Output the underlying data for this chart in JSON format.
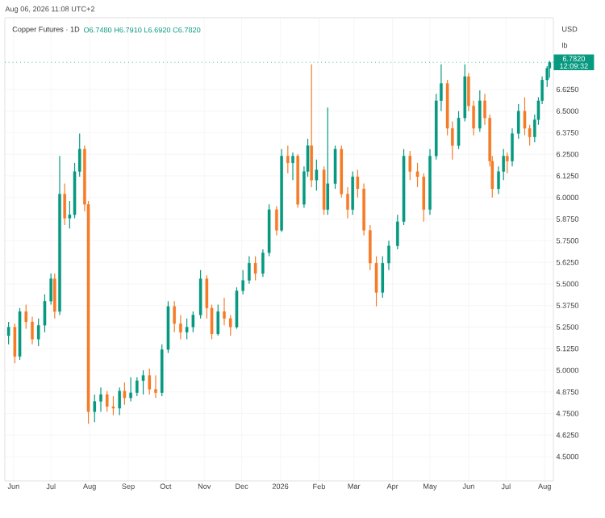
{
  "chart_data": {
    "type": "candlestick",
    "title": "Copper Futures · 1D",
    "subtitle": "O6.7480 H6.7910 L6.6920 C6.7820",
    "annotations": [
      "Aug 06, 2026 11:08 UTC+2",
      "USD",
      "lb",
      "12:09:32"
    ],
    "ref_lines": [
      {
        "axis": "y",
        "value": 6.782,
        "label": "6.7820",
        "color": "#089981",
        "line_style": "dotted"
      }
    ],
    "x": [
      "2025-05-28",
      "2025-06-02",
      "2025-06-06",
      "2025-06-11",
      "2025-06-16",
      "2025-06-21",
      "2025-06-26",
      "2025-07-01",
      "2025-07-04",
      "2025-07-08",
      "2025-07-12",
      "2025-07-16",
      "2025-07-20",
      "2025-07-24",
      "2025-07-28",
      "2025-07-31",
      "2025-08-05",
      "2025-08-10",
      "2025-08-15",
      "2025-08-20",
      "2025-08-25",
      "2025-08-29",
      "2025-09-03",
      "2025-09-08",
      "2025-09-13",
      "2025-09-18",
      "2025-09-23",
      "2025-09-28",
      "2025-10-03",
      "2025-10-08",
      "2025-10-13",
      "2025-10-18",
      "2025-10-23",
      "2025-10-29",
      "2025-11-03",
      "2025-11-07",
      "2025-11-12",
      "2025-11-17",
      "2025-11-22",
      "2025-11-27",
      "2025-12-02",
      "2025-12-07",
      "2025-12-12",
      "2025-12-18",
      "2025-12-23",
      "2025-12-29",
      "2026-01-02",
      "2026-01-07",
      "2026-01-11",
      "2026-01-15",
      "2026-01-20",
      "2026-01-23",
      "2026-01-26",
      "2026-01-30",
      "2026-02-05",
      "2026-02-08",
      "2026-02-14",
      "2026-02-19",
      "2026-02-24",
      "2026-02-28",
      "2026-03-04",
      "2026-03-09",
      "2026-03-14",
      "2026-03-19",
      "2026-03-24",
      "2026-03-29",
      "2026-04-05",
      "2026-04-10",
      "2026-04-15",
      "2026-04-21",
      "2026-04-26",
      "2026-05-01",
      "2026-05-06",
      "2026-05-10",
      "2026-05-15",
      "2026-05-19",
      "2026-05-24",
      "2026-05-29",
      "2026-06-01",
      "2026-06-05",
      "2026-06-10",
      "2026-06-14",
      "2026-06-18",
      "2026-06-20",
      "2026-06-25",
      "2026-06-29",
      "2026-07-02",
      "2026-07-06",
      "2026-07-11",
      "2026-07-16",
      "2026-07-20",
      "2026-07-24",
      "2026-07-27",
      "2026-07-30",
      "2026-08-03",
      "2026-08-05"
    ],
    "ohlc": [
      [
        5.2,
        5.28,
        5.15,
        5.25
      ],
      [
        5.25,
        5.27,
        5.04,
        5.08
      ],
      [
        5.08,
        5.36,
        5.06,
        5.34
      ],
      [
        5.34,
        5.38,
        5.24,
        5.28
      ],
      [
        5.28,
        5.31,
        5.15,
        5.18
      ],
      [
        5.18,
        5.3,
        5.14,
        5.26
      ],
      [
        5.26,
        5.44,
        5.22,
        5.4
      ],
      [
        5.4,
        5.56,
        5.38,
        5.53
      ],
      [
        5.53,
        5.56,
        5.3,
        5.34
      ],
      [
        5.34,
        6.24,
        5.32,
        6.02
      ],
      [
        6.02,
        6.08,
        5.84,
        5.88
      ],
      [
        5.88,
        5.98,
        5.82,
        5.9
      ],
      [
        5.9,
        6.2,
        5.88,
        6.15
      ],
      [
        6.15,
        6.37,
        6.12,
        6.28
      ],
      [
        6.28,
        6.3,
        5.92,
        5.96
      ],
      [
        5.96,
        5.98,
        4.69,
        4.76
      ],
      [
        4.76,
        4.86,
        4.7,
        4.82
      ],
      [
        4.82,
        4.9,
        4.76,
        4.86
      ],
      [
        4.86,
        4.88,
        4.76,
        4.79
      ],
      [
        4.79,
        4.85,
        4.74,
        4.78
      ],
      [
        4.78,
        4.9,
        4.74,
        4.88
      ],
      [
        4.88,
        4.93,
        4.8,
        4.84
      ],
      [
        4.84,
        4.96,
        4.82,
        4.87
      ],
      [
        4.87,
        4.96,
        4.85,
        4.94
      ],
      [
        4.94,
        5.0,
        4.86,
        4.97
      ],
      [
        4.97,
        5.01,
        4.86,
        4.89
      ],
      [
        4.89,
        4.97,
        4.84,
        4.87
      ],
      [
        4.87,
        5.15,
        4.85,
        5.12
      ],
      [
        5.12,
        5.4,
        5.1,
        5.37
      ],
      [
        5.37,
        5.4,
        5.22,
        5.27
      ],
      [
        5.27,
        5.32,
        5.18,
        5.22
      ],
      [
        5.22,
        5.3,
        5.18,
        5.25
      ],
      [
        5.25,
        5.34,
        5.22,
        5.32
      ],
      [
        5.32,
        5.58,
        5.3,
        5.53
      ],
      [
        5.53,
        5.55,
        5.3,
        5.36
      ],
      [
        5.36,
        5.38,
        5.18,
        5.21
      ],
      [
        5.21,
        5.38,
        5.2,
        5.34
      ],
      [
        5.34,
        5.42,
        5.26,
        5.3
      ],
      [
        5.3,
        5.32,
        5.2,
        5.25
      ],
      [
        5.25,
        5.48,
        5.24,
        5.46
      ],
      [
        5.46,
        5.58,
        5.44,
        5.52
      ],
      [
        5.52,
        5.66,
        5.5,
        5.62
      ],
      [
        5.62,
        5.66,
        5.52,
        5.56
      ],
      [
        5.56,
        5.7,
        5.54,
        5.68
      ],
      [
        5.68,
        5.96,
        5.66,
        5.93
      ],
      [
        5.93,
        5.95,
        5.78,
        5.81
      ],
      [
        5.81,
        6.28,
        5.8,
        6.24
      ],
      [
        6.24,
        6.3,
        6.14,
        6.2
      ],
      [
        6.2,
        6.26,
        6.1,
        6.24
      ],
      [
        6.24,
        6.25,
        5.94,
        5.96
      ],
      [
        5.96,
        6.18,
        5.94,
        6.15
      ],
      [
        6.15,
        6.34,
        6.12,
        6.3
      ],
      [
        6.3,
        6.77,
        6.06,
        6.1
      ],
      [
        6.1,
        6.22,
        6.04,
        6.16
      ],
      [
        6.16,
        6.18,
        5.9,
        5.93
      ],
      [
        5.93,
        6.52,
        5.9,
        6.08
      ],
      [
        6.08,
        6.3,
        6.05,
        6.28
      ],
      [
        6.28,
        6.3,
        6.0,
        6.02
      ],
      [
        6.02,
        6.06,
        5.88,
        5.93
      ],
      [
        5.93,
        6.15,
        5.9,
        6.12
      ],
      [
        6.12,
        6.16,
        6.0,
        6.05
      ],
      [
        6.05,
        6.08,
        5.78,
        5.81
      ],
      [
        5.81,
        5.84,
        5.58,
        5.62
      ],
      [
        5.62,
        5.66,
        5.37,
        5.45
      ],
      [
        5.45,
        5.66,
        5.42,
        5.62
      ],
      [
        5.62,
        5.75,
        5.58,
        5.72
      ],
      [
        5.72,
        5.9,
        5.7,
        5.86
      ],
      [
        5.86,
        6.28,
        5.84,
        6.24
      ],
      [
        6.24,
        6.27,
        6.1,
        6.15
      ],
      [
        6.15,
        6.2,
        6.06,
        6.12
      ],
      [
        6.12,
        6.14,
        5.86,
        5.93
      ],
      [
        5.93,
        6.28,
        5.9,
        6.24
      ],
      [
        6.24,
        6.6,
        6.22,
        6.56
      ],
      [
        6.56,
        6.77,
        6.5,
        6.66
      ],
      [
        6.66,
        6.68,
        6.36,
        6.4
      ],
      [
        6.4,
        6.44,
        6.22,
        6.3
      ],
      [
        6.3,
        6.5,
        6.28,
        6.46
      ],
      [
        6.46,
        6.77,
        6.44,
        6.7
      ],
      [
        6.7,
        6.72,
        6.5,
        6.53
      ],
      [
        6.53,
        6.56,
        6.36,
        6.4
      ],
      [
        6.4,
        6.62,
        6.38,
        6.56
      ],
      [
        6.56,
        6.6,
        6.42,
        6.46
      ],
      [
        6.46,
        6.48,
        6.18,
        6.21
      ],
      [
        6.21,
        6.24,
        6.0,
        6.05
      ],
      [
        6.05,
        6.18,
        6.02,
        6.15
      ],
      [
        6.15,
        6.28,
        6.1,
        6.24
      ],
      [
        6.24,
        6.26,
        6.14,
        6.21
      ],
      [
        6.21,
        6.4,
        6.18,
        6.37
      ],
      [
        6.37,
        6.54,
        6.34,
        6.5
      ],
      [
        6.5,
        6.58,
        6.36,
        6.4
      ],
      [
        6.4,
        6.42,
        6.3,
        6.35
      ],
      [
        6.35,
        6.48,
        6.32,
        6.45
      ],
      [
        6.45,
        6.58,
        6.42,
        6.56
      ],
      [
        6.56,
        6.7,
        6.54,
        6.68
      ],
      [
        6.68,
        6.76,
        6.64,
        6.748
      ],
      [
        6.748,
        6.791,
        6.692,
        6.782
      ]
    ],
    "colors": [
      "#089981",
      "#f57c28",
      "#089981",
      "#f57c28",
      "#f57c28",
      "#089981",
      "#089981",
      "#089981",
      "#f57c28",
      "#089981",
      "#f57c28",
      "#089981",
      "#089981",
      "#089981",
      "#f57c28",
      "#f57c28",
      "#089981",
      "#089981",
      "#f57c28",
      "#f57c28",
      "#089981",
      "#f57c28",
      "#089981",
      "#089981",
      "#089981",
      "#f57c28",
      "#f57c28",
      "#089981",
      "#089981",
      "#f57c28",
      "#f57c28",
      "#089981",
      "#089981",
      "#089981",
      "#f57c28",
      "#f57c28",
      "#089981",
      "#f57c28",
      "#f57c28",
      "#089981",
      "#089981",
      "#089981",
      "#f57c28",
      "#089981",
      "#089981",
      "#f57c28",
      "#089981",
      "#f57c28",
      "#089981",
      "#f57c28",
      "#089981",
      "#089981",
      "#f57c28",
      "#089981",
      "#f57c28",
      "#089981",
      "#089981",
      "#f57c28",
      "#f57c28",
      "#089981",
      "#f57c28",
      "#f57c28",
      "#f57c28",
      "#f57c28",
      "#089981",
      "#089981",
      "#089981",
      "#089981",
      "#f57c28",
      "#f57c28",
      "#f57c28",
      "#089981",
      "#089981",
      "#089981",
      "#f57c28",
      "#f57c28",
      "#089981",
      "#089981",
      "#f57c28",
      "#f57c28",
      "#089981",
      "#f57c28",
      "#f57c28",
      "#f57c28",
      "#089981",
      "#089981",
      "#f57c28",
      "#089981",
      "#089981",
      "#f57c28",
      "#f57c28",
      "#089981",
      "#089981",
      "#089981",
      "#089981",
      "#089981"
    ],
    "xlim": [
      "2025-05-25",
      "2026-08-08"
    ],
    "xticks": [
      {
        "value": "2025-06-01",
        "label": "Jun"
      },
      {
        "value": "2025-07-01",
        "label": "Jul"
      },
      {
        "value": "2025-08-01",
        "label": "Aug"
      },
      {
        "value": "2025-09-01",
        "label": "Sep"
      },
      {
        "value": "2025-10-01",
        "label": "Oct"
      },
      {
        "value": "2025-11-01",
        "label": "Nov"
      },
      {
        "value": "2025-12-01",
        "label": "Dec"
      },
      {
        "value": "2026-01-01",
        "label": "2026"
      },
      {
        "value": "2026-02-01",
        "label": "Feb"
      },
      {
        "value": "2026-03-01",
        "label": "Mar"
      },
      {
        "value": "2026-04-01",
        "label": "Apr"
      },
      {
        "value": "2026-05-01",
        "label": "May"
      },
      {
        "value": "2026-06-01",
        "label": "Jun"
      },
      {
        "value": "2026-07-01",
        "label": "Jul"
      },
      {
        "value": "2026-08-01",
        "label": "Aug"
      }
    ],
    "ylim": [
      4.36,
      7.04
    ],
    "yticks": [
      {
        "value": 4.5,
        "label": "4.5000"
      },
      {
        "value": 4.625,
        "label": "4.6250"
      },
      {
        "value": 4.75,
        "label": "4.7500"
      },
      {
        "value": 4.875,
        "label": "4.8750"
      },
      {
        "value": 5.0,
        "label": "5.0000"
      },
      {
        "value": 5.125,
        "label": "5.1250"
      },
      {
        "value": 5.25,
        "label": "5.2500"
      },
      {
        "value": 5.375,
        "label": "5.3750"
      },
      {
        "value": 5.5,
        "label": "5.5000"
      },
      {
        "value": 5.625,
        "label": "5.6250"
      },
      {
        "value": 5.75,
        "label": "5.7500"
      },
      {
        "value": 5.875,
        "label": "5.8750"
      },
      {
        "value": 6.0,
        "label": "6.0000"
      },
      {
        "value": 6.125,
        "label": "6.1250"
      },
      {
        "value": 6.25,
        "label": "6.2500"
      },
      {
        "value": 6.375,
        "label": "6.3750"
      },
      {
        "value": 6.5,
        "label": "6.5000"
      },
      {
        "value": 6.625,
        "label": "6.6250"
      }
    ],
    "grid": true
  }
}
